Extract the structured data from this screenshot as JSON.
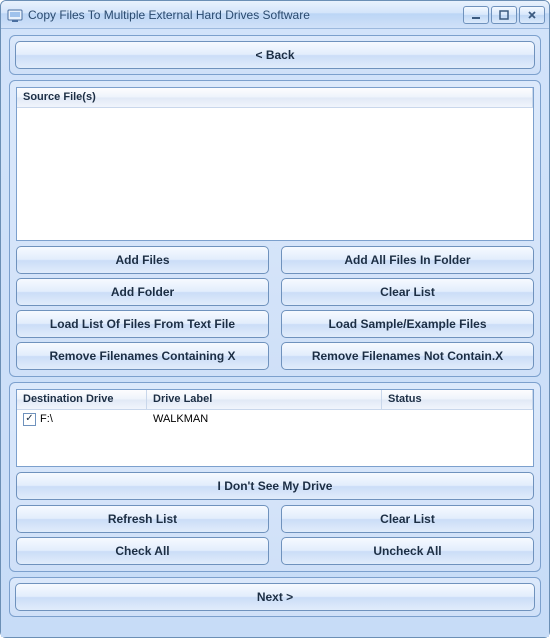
{
  "window": {
    "title": "Copy Files To Multiple External Hard Drives Software"
  },
  "topbar": {
    "back_label": "< Back"
  },
  "source": {
    "header_label": "Source File(s)"
  },
  "source_buttons": {
    "add_files": "Add Files",
    "add_all_files_in_folder": "Add All Files In Folder",
    "add_folder": "Add Folder",
    "clear_list": "Clear List",
    "load_list_from_text": "Load List Of Files From Text File",
    "load_sample": "Load Sample/Example Files",
    "remove_containing": "Remove Filenames Containing X",
    "remove_not_containing": "Remove Filenames Not Contain.X"
  },
  "drives": {
    "col_dest": "Destination Drive",
    "col_label": "Drive Label",
    "col_status": "Status",
    "rows": [
      {
        "checked": true,
        "drive": "F:\\",
        "label": "WALKMAN",
        "status": ""
      }
    ]
  },
  "drive_buttons": {
    "dont_see": "I Don't See My Drive",
    "refresh": "Refresh List",
    "clear": "Clear List",
    "check_all": "Check All",
    "uncheck_all": "Uncheck All"
  },
  "bottom": {
    "next_label": "Next >"
  },
  "colors": {
    "accent_border": "#6f92bd",
    "panel_border": "#7ca0cd",
    "text": "#1c2e44"
  }
}
